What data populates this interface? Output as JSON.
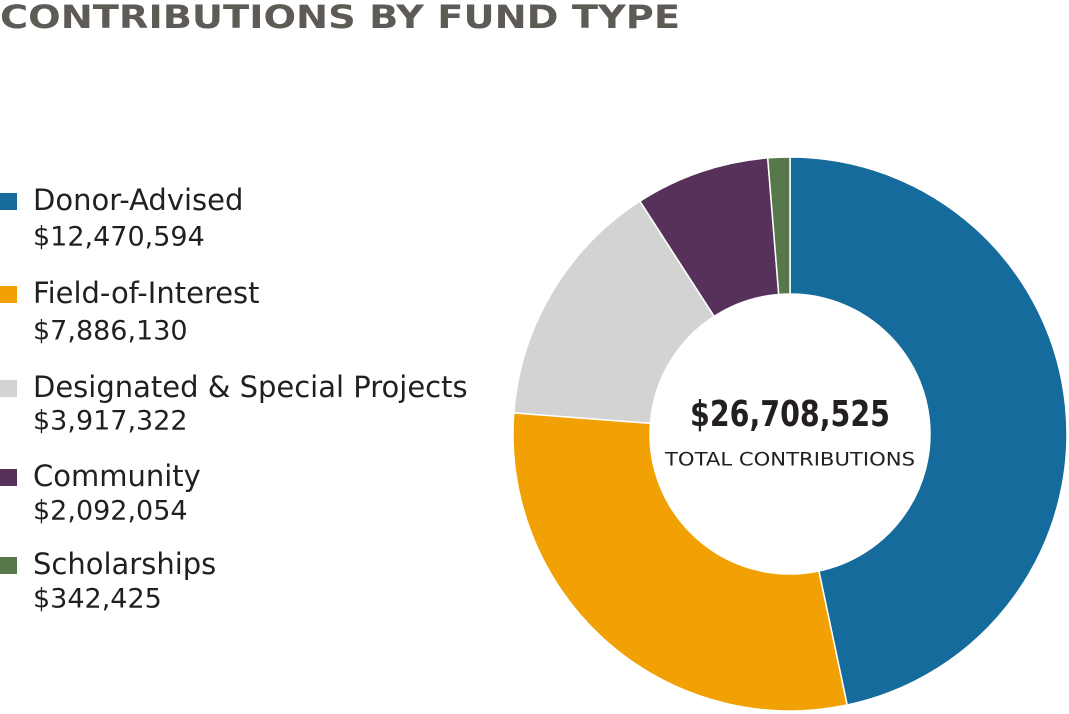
{
  "chart_data": {
    "type": "donut",
    "title": "CONTRIBUTIONS BY FUND TYPE",
    "categories": [
      "Donor-Advised",
      "Field-of-Interest",
      "Designated & Special Projects",
      "Community",
      "Scholarships"
    ],
    "values": [
      12470594,
      7886130,
      3917322,
      2092054,
      342425
    ],
    "value_labels": [
      "$12,470,594",
      "$7,886,130",
      "$3,917,322",
      "$2,092,054",
      "$342,425"
    ],
    "colors": [
      "#156c9c",
      "#f2a104",
      "#d2d3d2",
      "#56325a",
      "#56784a"
    ],
    "center_label": "$26,708,525",
    "center_sublabel": "TOTAL CONTRIBUTIONS"
  }
}
